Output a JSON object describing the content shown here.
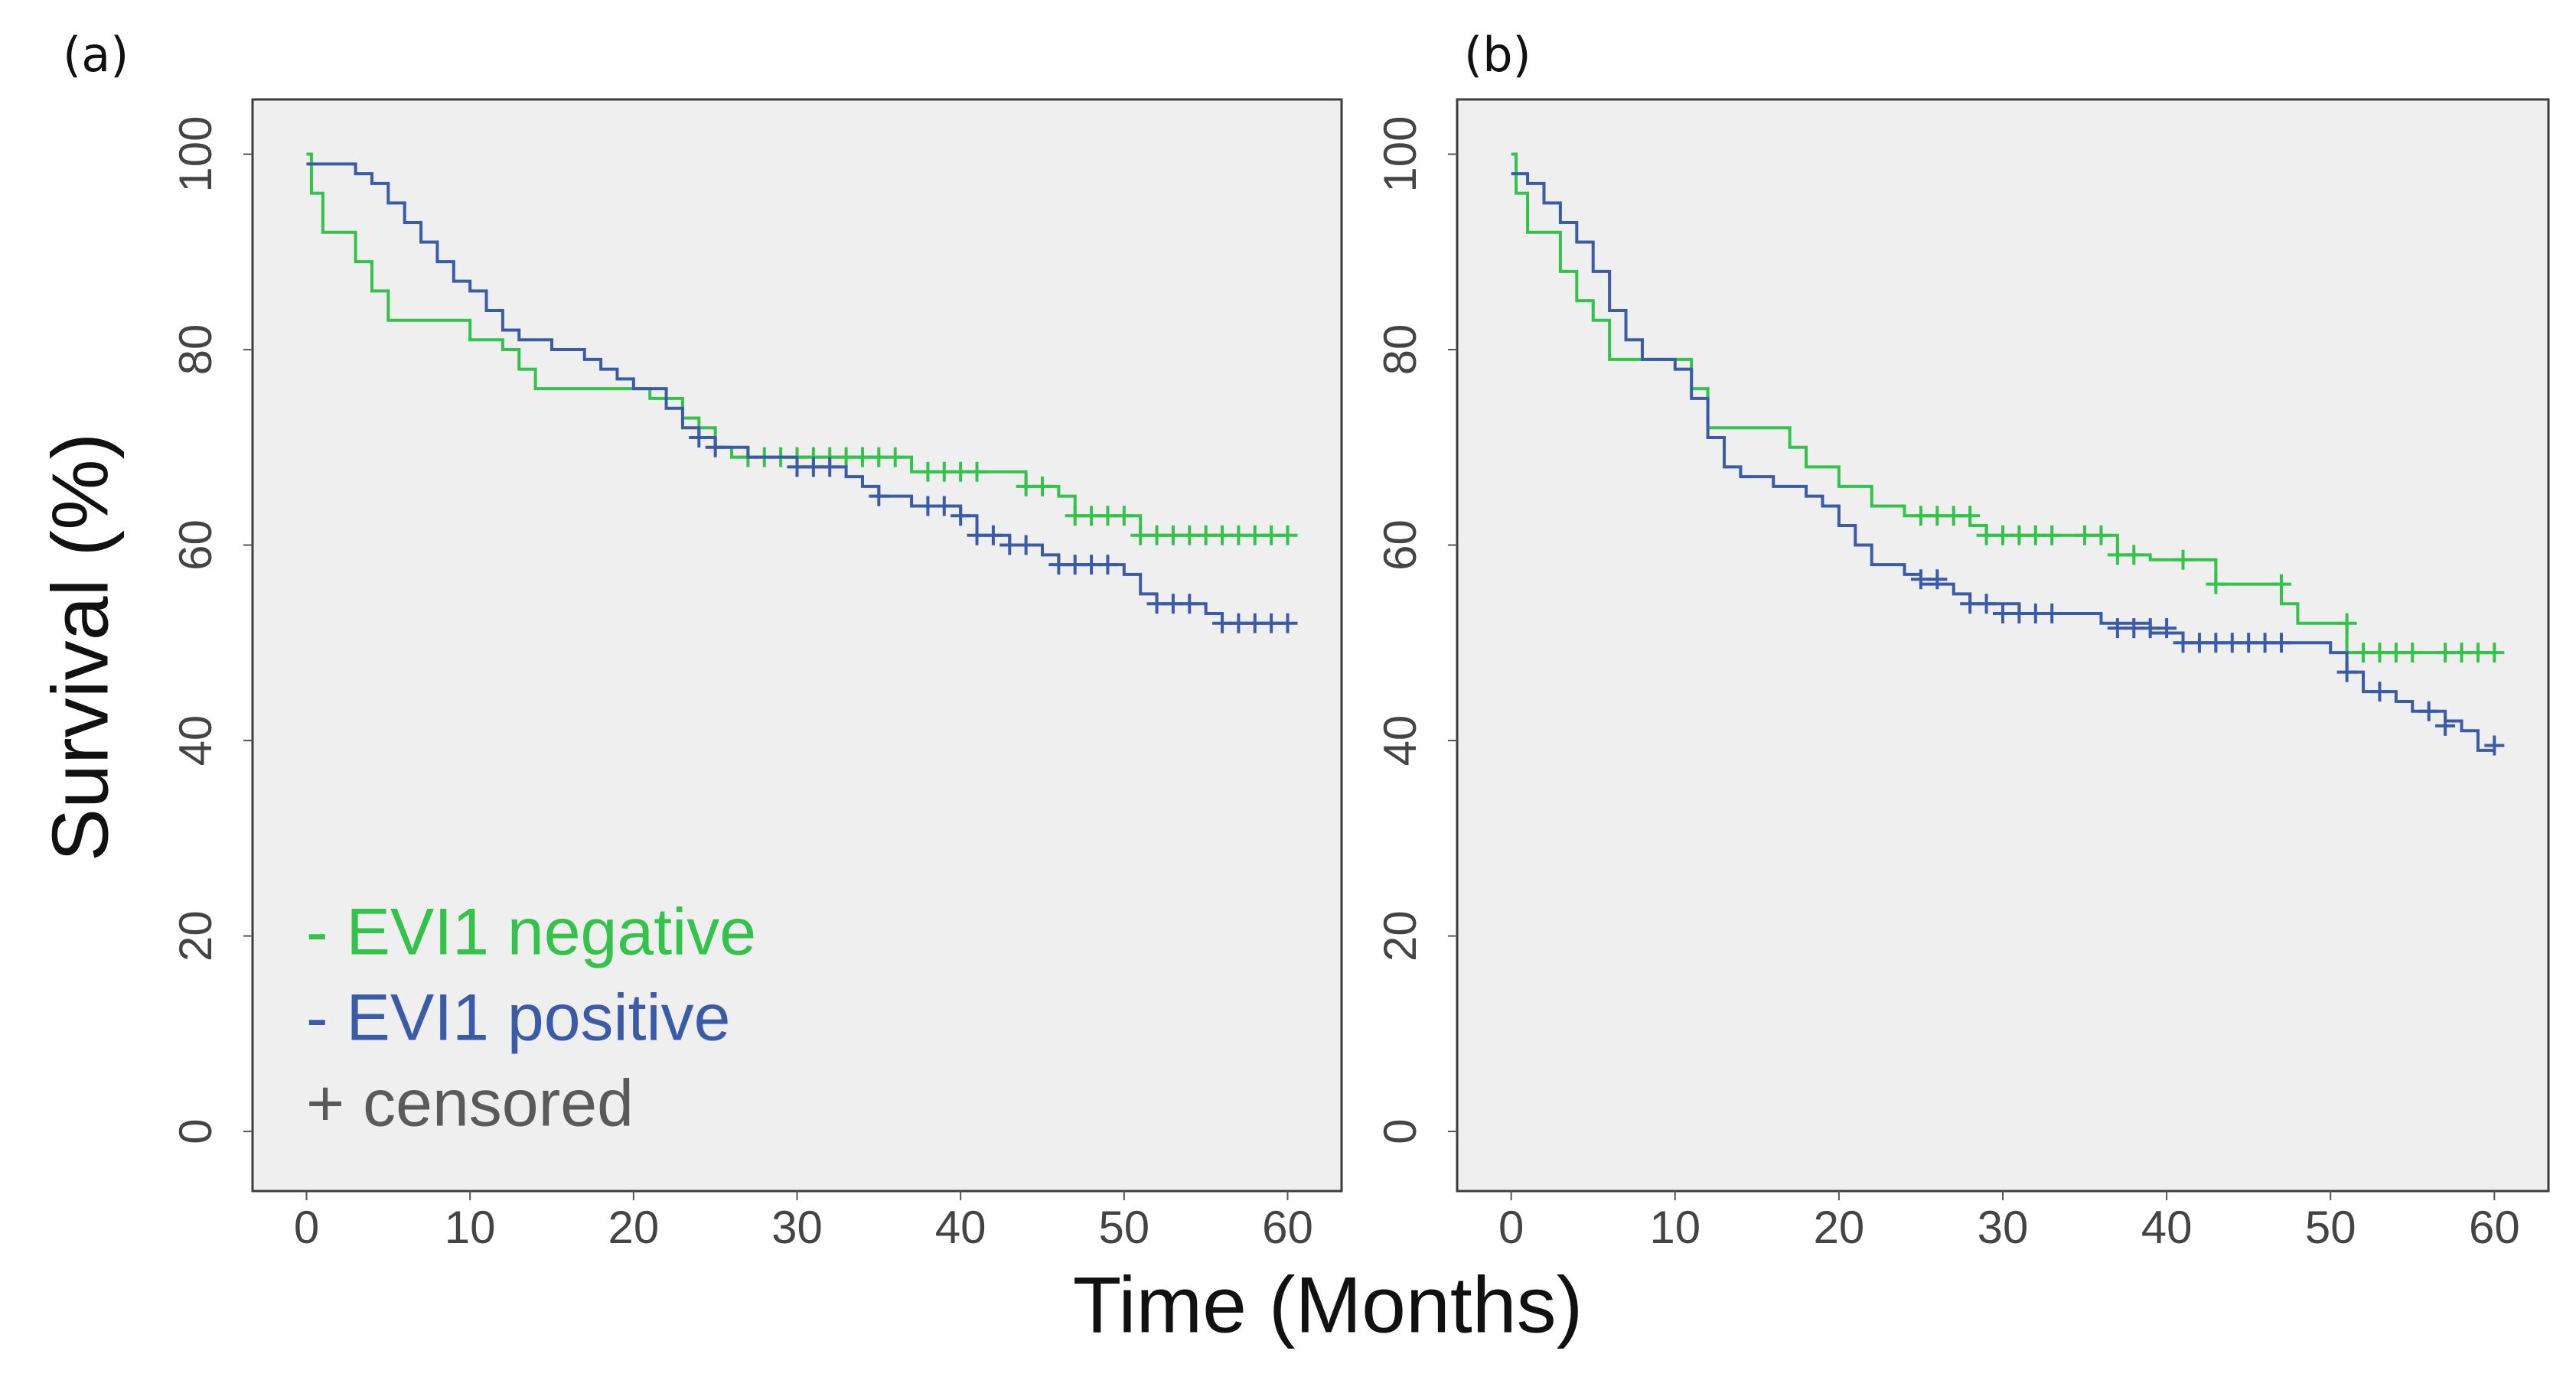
{
  "chart_data": [
    {
      "type": "line",
      "step": "post",
      "panel_label": "(a)",
      "xlabel": "Time (Months)",
      "ylabel": "Survival (%)",
      "xlim": [
        -3.3,
        63.3
      ],
      "ylim": [
        -6.1,
        105.6
      ],
      "xticks": [
        0,
        10,
        20,
        30,
        40,
        50,
        60
      ],
      "yticks": [
        0,
        20,
        40,
        60,
        80,
        100
      ],
      "censored_label": "+ censored",
      "censored_color": "#5a5a5a",
      "series": [
        {
          "name": "- EVI1 negative",
          "color": "#33c24a",
          "x": [
            0,
            0.3,
            1,
            3,
            4,
            5,
            10,
            12,
            13,
            14,
            20,
            21,
            23,
            24,
            25,
            26,
            37,
            44,
            46,
            47,
            51,
            60
          ],
          "values": [
            100,
            96,
            92,
            89,
            86,
            83,
            81,
            80,
            78,
            76,
            76,
            75,
            73,
            72,
            70,
            69,
            67.5,
            66,
            65,
            63,
            61,
            61
          ],
          "censor_x": [
            27,
            28,
            29,
            30,
            31,
            32,
            33,
            34,
            35,
            36,
            38,
            39,
            40,
            41,
            44,
            45,
            47,
            48,
            49,
            50,
            51,
            52,
            53,
            54,
            55,
            56,
            57,
            58,
            59,
            60
          ],
          "censor_values": [
            69,
            69,
            69,
            69,
            69,
            69,
            69,
            69,
            69,
            69,
            67.5,
            67.5,
            67.5,
            67.5,
            66,
            66,
            63,
            63,
            63,
            63,
            61,
            61,
            61,
            61,
            61,
            61,
            61,
            61,
            61,
            61
          ]
        },
        {
          "name": "- EVI1 positive",
          "color": "#3a5ba8",
          "x": [
            0,
            3,
            4,
            5,
            6,
            7,
            8,
            9,
            10,
            11,
            12,
            13,
            15,
            17,
            18,
            19,
            20,
            22,
            23,
            24,
            25,
            27,
            30,
            33,
            34,
            35,
            37,
            40,
            41,
            43,
            45,
            46,
            50,
            51,
            52,
            55,
            56,
            60
          ],
          "values": [
            99,
            98,
            97,
            95,
            93,
            91,
            89,
            87,
            86,
            84,
            82,
            81,
            80,
            79,
            78,
            77,
            76,
            74,
            72,
            71,
            70,
            69,
            68,
            67,
            66,
            65,
            64,
            63,
            61,
            60,
            59,
            58,
            57,
            55,
            54,
            53,
            52,
            52
          ],
          "censor_x": [
            24,
            25,
            30,
            31,
            32,
            35,
            38,
            39,
            40,
            41,
            42,
            43,
            44,
            46,
            47,
            48,
            49,
            52,
            53,
            54,
            56,
            57,
            58,
            59,
            60
          ],
          "censor_values": [
            71,
            70,
            68,
            68,
            68,
            65,
            64,
            64,
            63,
            61,
            61,
            60,
            60,
            58,
            58,
            58,
            58,
            54,
            54,
            54,
            52,
            52,
            52,
            52,
            52
          ]
        }
      ]
    },
    {
      "type": "line",
      "step": "post",
      "panel_label": "(b)",
      "xlim": [
        -3.3,
        63.3
      ],
      "ylim": [
        -6.1,
        105.6
      ],
      "xticks": [
        0,
        10,
        20,
        30,
        40,
        50,
        60
      ],
      "yticks": [
        0,
        20,
        40,
        60,
        80,
        100
      ],
      "censored_color": "#5a5a5a",
      "series": [
        {
          "color": "#33c24a",
          "x": [
            0,
            0.3,
            1,
            3,
            4,
            5,
            6,
            11,
            12,
            17,
            18,
            20,
            22,
            24,
            28,
            29,
            37,
            39,
            43,
            47,
            48,
            51,
            60
          ],
          "values": [
            100,
            96,
            92,
            88,
            85,
            83,
            79,
            76,
            72,
            70,
            68,
            66,
            64,
            63,
            62,
            61,
            59,
            58.5,
            56,
            54,
            52,
            49,
            49
          ],
          "censor_x": [
            25,
            26,
            27,
            28,
            29,
            30,
            31,
            32,
            33,
            35,
            36,
            37,
            38,
            41,
            43,
            47,
            51,
            52,
            53,
            54,
            55,
            57,
            58,
            59,
            60
          ],
          "censor_values": [
            63,
            63,
            63,
            63,
            61,
            61,
            61,
            61,
            61,
            61,
            61,
            59,
            59,
            58.5,
            56,
            56,
            52,
            49,
            49,
            49,
            49,
            49,
            49,
            49,
            49
          ]
        },
        {
          "color": "#3a5ba8",
          "x": [
            0,
            1,
            2,
            3,
            4,
            5,
            6,
            7,
            8,
            10,
            11,
            12,
            13,
            14,
            16,
            18,
            19,
            20,
            21,
            22,
            24,
            25,
            27,
            28,
            31,
            36,
            39,
            41,
            50,
            51,
            52,
            54,
            55,
            57,
            58,
            59,
            60
          ],
          "values": [
            98,
            97,
            95,
            93,
            91,
            88,
            84,
            81,
            79,
            78,
            75,
            71,
            68,
            67,
            66,
            65,
            64,
            62,
            60,
            58,
            57,
            56,
            55,
            54,
            53,
            52,
            51,
            50,
            49,
            47,
            45,
            44,
            43,
            42,
            41,
            39,
            39
          ],
          "censor_x": [
            25,
            26,
            28,
            29,
            30,
            31,
            32,
            33,
            37,
            38,
            39,
            40,
            41,
            42,
            43,
            44,
            45,
            46,
            47,
            51,
            53,
            56,
            57,
            60
          ],
          "censor_values": [
            56.5,
            56.5,
            54,
            54,
            53,
            53,
            53,
            53,
            51.5,
            51.5,
            51.5,
            51.5,
            50,
            50,
            50,
            50,
            50,
            50,
            50,
            47,
            45,
            43,
            41.5,
            39.5
          ]
        }
      ]
    }
  ]
}
